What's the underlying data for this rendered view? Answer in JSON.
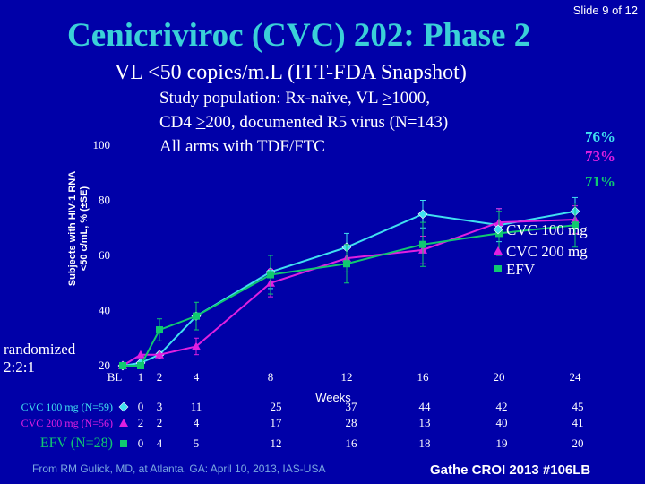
{
  "slide_number": "Slide 9 of 12",
  "title": "Cenicriviroc (CVC) 202:  Phase 2",
  "subtitle": "VL <50 copies/m.L (ITT-FDA Snapshot)",
  "study": {
    "line1_pre": "Study population:  Rx-naïve, VL ",
    "line1_ge": ">",
    "line1_post": "1000,",
    "line2_pre": "CD4 ",
    "line2_ge": ">",
    "line2_post": "200, documented R5 virus (N=143)",
    "line3": "All arms with TDF/FTC"
  },
  "randomized": {
    "line1": "randomized",
    "line2": "2:2:1"
  },
  "source": "From RM Gulick, MD, at Atlanta, GA: April 10, 2013, IAS-USA",
  "citation": "Gathe CROI 2013 #106LB",
  "chart_data": {
    "type": "line",
    "ylabel_line1": "Subjects with HIV-1 RNA",
    "ylabel_line2": "<50 c/mL, % (±SE)",
    "xlabel": "Weeks",
    "ylim": [
      20,
      100
    ],
    "xlim": [
      0,
      24
    ],
    "y_ticks": [
      20,
      40,
      60,
      80,
      100
    ],
    "y_tick_labels": [
      "20",
      "40",
      "60",
      "80",
      "100"
    ],
    "x_ticks": [
      0,
      1,
      2,
      4,
      8,
      12,
      16,
      20,
      24
    ],
    "x_tick_labels": [
      "BL",
      "1",
      "2",
      "4",
      "8",
      "12",
      "16",
      "20",
      "24"
    ],
    "x": [
      0,
      1,
      2,
      4,
      8,
      12,
      16,
      20,
      24
    ],
    "series": [
      {
        "name": "CVC 100 mg",
        "marker": "diamond",
        "color": "#40e0f0",
        "values": [
          20,
          21,
          24,
          38,
          54,
          63,
          75,
          71,
          76
        ],
        "error": [
          0,
          0,
          0,
          0,
          6,
          5,
          5,
          6,
          5
        ],
        "end_label": "76%",
        "n_label": "CVC 100 mg (N=59)",
        "n": [
          "0",
          "3",
          "11",
          "25",
          "37",
          "44",
          "42",
          "45"
        ]
      },
      {
        "name": "CVC 200 mg",
        "marker": "triangle",
        "color": "#e020e0",
        "values": [
          20,
          24,
          24,
          27,
          50,
          59,
          62,
          72,
          73
        ],
        "error": [
          0,
          0,
          0,
          3,
          5,
          5,
          5,
          5,
          5
        ],
        "end_label": "73%",
        "n_label": "CVC 200 mg (N=56)",
        "n": [
          "2",
          "2",
          "4",
          "17",
          "28",
          "13",
          "40",
          "41"
        ]
      },
      {
        "name": "EFV",
        "marker": "square",
        "color": "#10c870",
        "values": [
          20,
          20,
          33,
          38,
          53,
          57,
          64,
          68,
          71
        ],
        "error": [
          0,
          0,
          4,
          5,
          7,
          7,
          8,
          8,
          8
        ],
        "end_label": "71%",
        "n_label": "EFV (N=28)",
        "n": [
          "0",
          "4",
          "5",
          "12",
          "16",
          "18",
          "19",
          "20"
        ]
      }
    ],
    "n_columns": [
      1,
      2,
      4,
      8,
      12,
      16,
      20,
      24
    ],
    "legend_position": "right"
  }
}
